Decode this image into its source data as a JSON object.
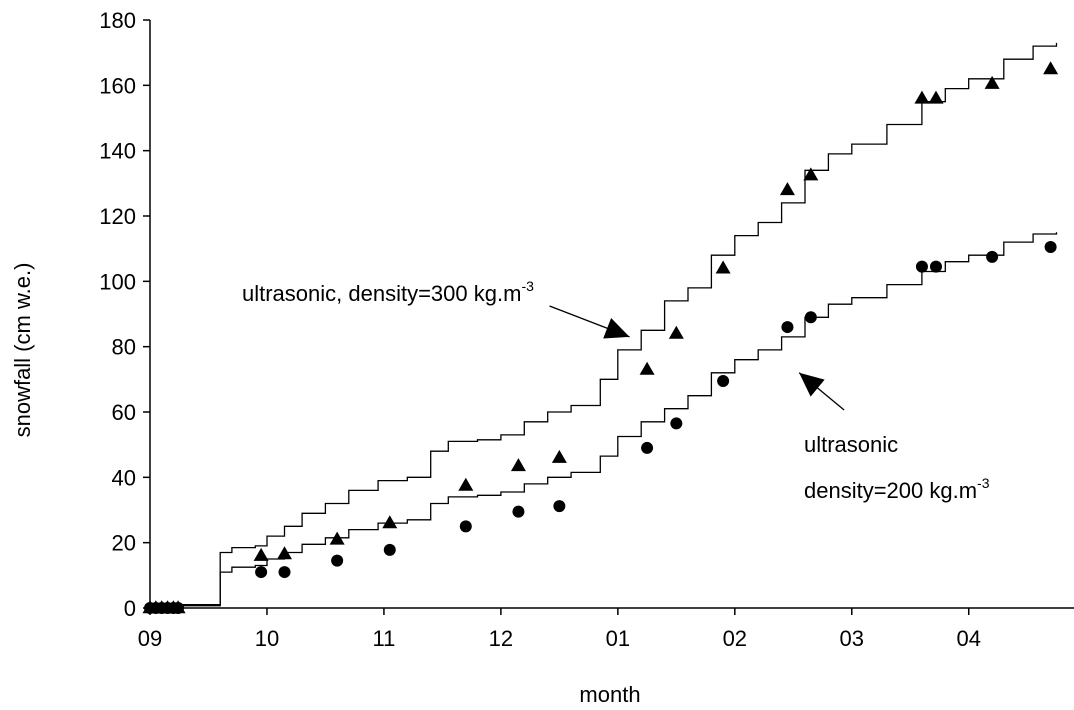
{
  "chart_data": {
    "type": "scatter",
    "title": "",
    "xlabel": "month",
    "ylabel": "snowfall (cm w.e.)",
    "xlim": [
      0,
      7.9
    ],
    "ylim": [
      0,
      180
    ],
    "yticks": [
      0,
      20,
      40,
      60,
      80,
      100,
      120,
      140,
      160,
      180
    ],
    "xtick_positions": [
      0,
      1,
      2,
      3,
      4,
      5,
      6,
      7
    ],
    "xtick_labels": [
      "09",
      "10",
      "11",
      "12",
      "01",
      "02",
      "03",
      "04"
    ],
    "grid": false,
    "legend": "none",
    "series": [
      {
        "marker": "triangle",
        "color": "#000000",
        "x": [
          0.0,
          0.05,
          0.1,
          0.15,
          0.2,
          0.24,
          0.95,
          1.15,
          1.6,
          2.05,
          2.7,
          3.15,
          3.5,
          4.25,
          4.5,
          4.9,
          5.45,
          5.65,
          6.6,
          6.72,
          7.2,
          7.7
        ],
        "y": [
          0,
          0,
          0,
          0,
          0,
          0,
          16,
          16.5,
          21,
          26,
          37.5,
          43.5,
          46,
          73,
          84,
          104,
          128,
          132.5,
          156,
          156,
          160.5,
          165
        ]
      },
      {
        "marker": "circle",
        "color": "#000000",
        "x": [
          0.0,
          0.05,
          0.1,
          0.15,
          0.2,
          0.24,
          0.95,
          1.15,
          1.6,
          2.05,
          2.7,
          3.15,
          3.5,
          4.25,
          4.5,
          4.9,
          5.45,
          5.65,
          6.6,
          6.72,
          7.2,
          7.7
        ],
        "y": [
          0,
          0,
          0,
          0,
          0,
          0,
          11,
          11,
          14.5,
          17.8,
          25,
          29.5,
          31.2,
          49,
          56.5,
          69.5,
          86,
          89,
          104.5,
          104.5,
          107.5,
          110.5
        ]
      },
      {
        "line": "ultrasonic, density=300",
        "color": "#000000",
        "x": [
          0,
          0.45,
          0.6,
          0.7,
          0.9,
          1.0,
          1.15,
          1.3,
          1.5,
          1.7,
          1.95,
          2.2,
          2.4,
          2.55,
          2.8,
          3.0,
          3.2,
          3.4,
          3.6,
          3.85,
          4.0,
          4.2,
          4.4,
          4.6,
          4.8,
          5.0,
          5.2,
          5.4,
          5.6,
          5.8,
          6.0,
          6.3,
          6.6,
          6.8,
          7.0,
          7.3,
          7.55,
          7.75
        ],
        "y": [
          1,
          1,
          17,
          18.5,
          19,
          22,
          25,
          29,
          32,
          36,
          39,
          40,
          48,
          51,
          51.5,
          53,
          57,
          60,
          62,
          70,
          79,
          85,
          94,
          98,
          108,
          114,
          118,
          124,
          134,
          139,
          142,
          148,
          155,
          159,
          162,
          168,
          172,
          173
        ]
      },
      {
        "line": "ultrasonic, density=200",
        "color": "#000000",
        "x": [
          0,
          0.45,
          0.6,
          0.7,
          0.9,
          1.0,
          1.15,
          1.3,
          1.5,
          1.7,
          1.95,
          2.2,
          2.4,
          2.55,
          2.8,
          3.0,
          3.2,
          3.4,
          3.6,
          3.85,
          4.0,
          4.2,
          4.4,
          4.6,
          4.8,
          5.0,
          5.2,
          5.4,
          5.6,
          5.8,
          6.0,
          6.3,
          6.6,
          6.8,
          7.0,
          7.3,
          7.55,
          7.75
        ],
        "y": [
          0.7,
          0.7,
          11,
          12.5,
          13,
          15,
          17,
          19.5,
          21.5,
          24,
          26,
          27,
          32,
          34,
          34.5,
          35.5,
          38,
          40,
          41.5,
          46.5,
          52.5,
          57,
          61,
          65,
          72,
          76,
          79,
          83,
          89,
          93,
          95,
          99,
          103,
          106,
          108,
          112,
          114.5,
          115
        ]
      }
    ],
    "annotations": [
      {
        "text": "ultrasonic, density=300 kg.m",
        "sup": "-3",
        "arrow_to": [
          4.1,
          83
        ]
      },
      {
        "text_line1": "ultrasonic",
        "text_line2": "density=200 kg.m",
        "sup": "-3",
        "arrow_to": [
          5.55,
          72
        ]
      }
    ]
  }
}
